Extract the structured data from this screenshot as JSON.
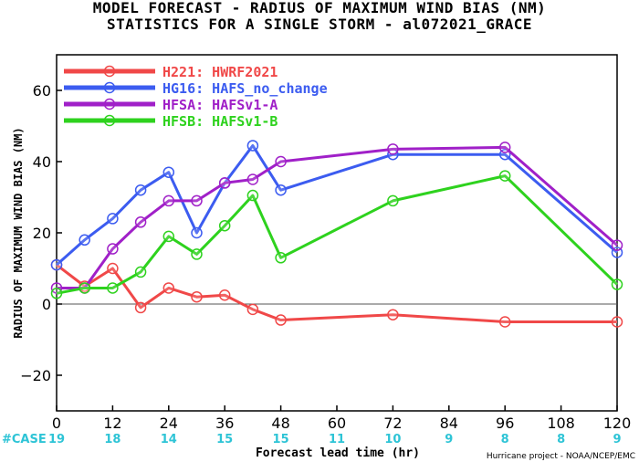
{
  "title_line1": "MODEL FORECAST - RADIUS OF MAXIMUM WIND BIAS (NM)",
  "title_line2": "STATISTICS FOR A SINGLE STORM - al072021_GRACE",
  "case_label": "#CASE",
  "credit": "Hurricane project - NOAA/NCEP/EMC",
  "colors": {
    "case_counts": "#2ec4d6",
    "zero_line": "#555555"
  },
  "chart_data": {
    "type": "line",
    "title": "MODEL FORECAST - RADIUS OF MAXIMUM WIND BIAS (NM)",
    "subtitle": "STATISTICS FOR A SINGLE STORM - al072021_GRACE",
    "xlabel": "Forecast lead time (hr)",
    "ylabel": "RADIUS OF MAXIMUM WIND BIAS (NM)",
    "xlim": [
      0,
      120
    ],
    "ylim": [
      -30,
      70
    ],
    "x_ticks": [
      0,
      12,
      24,
      36,
      48,
      60,
      72,
      84,
      96,
      108,
      120
    ],
    "y_ticks": [
      -20,
      0,
      20,
      40,
      60
    ],
    "case_counts": [
      19,
      18,
      14,
      15,
      15,
      11,
      10,
      9,
      8,
      8,
      9
    ],
    "legend_position": "top-left",
    "series": [
      {
        "name": "H221: HWRF2021",
        "color": "#f04848",
        "x": [
          0,
          6,
          12,
          18,
          24,
          30,
          36,
          42,
          48,
          72,
          96,
          120
        ],
        "values": [
          11,
          5,
          10,
          -1,
          4.5,
          2,
          2.5,
          -1.5,
          -4.5,
          -3,
          -5,
          -5
        ]
      },
      {
        "name": "HG16: HAFS_no_change",
        "color": "#3c5cf0",
        "x": [
          0,
          6,
          12,
          18,
          24,
          30,
          36,
          42,
          48,
          72,
          96,
          120
        ],
        "values": [
          11,
          18,
          24,
          32,
          37,
          20,
          34,
          44.5,
          32,
          42,
          42,
          14.5
        ]
      },
      {
        "name": "HFSA: HAFSv1-A",
        "color": "#a020c8",
        "x": [
          0,
          6,
          12,
          18,
          24,
          30,
          36,
          42,
          48,
          72,
          96,
          120
        ],
        "values": [
          4.5,
          4.5,
          15.5,
          23,
          29,
          29,
          34,
          35,
          40,
          43.5,
          44,
          16.5
        ]
      },
      {
        "name": "HFSB: HAFSv1-B",
        "color": "#2ed21e",
        "x": [
          0,
          6,
          12,
          18,
          24,
          30,
          36,
          42,
          48,
          72,
          96,
          120
        ],
        "values": [
          3,
          4.5,
          4.5,
          9,
          19,
          14,
          22,
          30.5,
          13,
          29,
          36,
          5.5
        ]
      }
    ]
  }
}
